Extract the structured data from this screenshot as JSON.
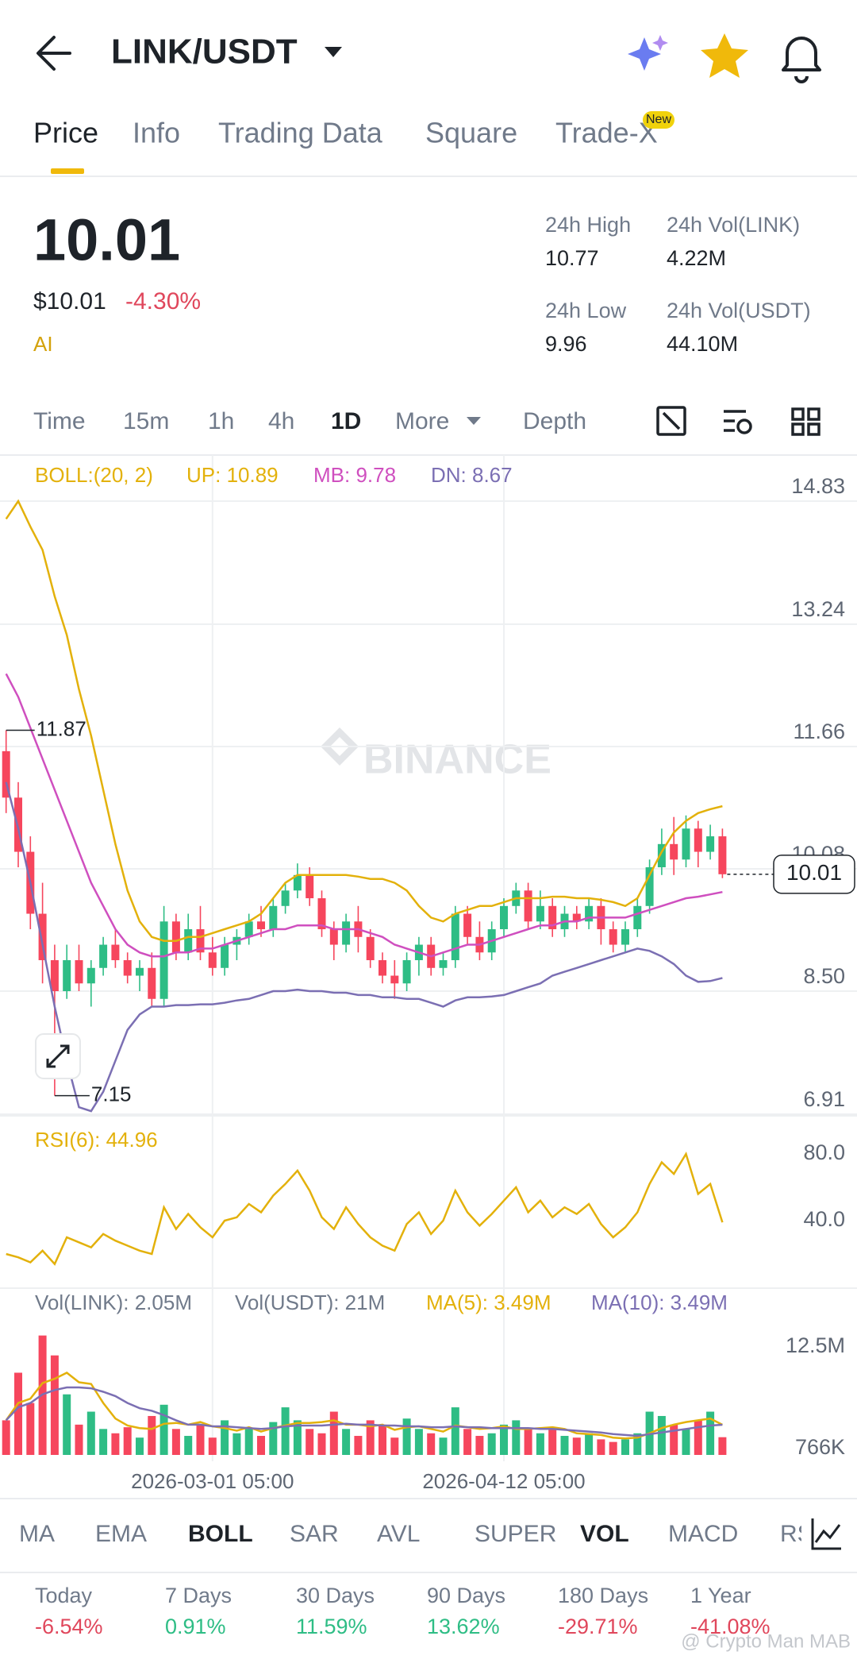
{
  "header": {
    "title": "LINK/USDT"
  },
  "tabs": {
    "items": [
      "Price",
      "Info",
      "Trading Data",
      "Square",
      "Trade-X"
    ],
    "badge": "New"
  },
  "ticker": {
    "price": "10.01",
    "usd_price": "$10.01",
    "change": "-4.30%",
    "ai": "AI",
    "stats": [
      {
        "label": "24h High",
        "value": "10.77"
      },
      {
        "label": "24h Vol(LINK)",
        "value": "4.22M"
      },
      {
        "label": "24h Low",
        "value": "9.96"
      },
      {
        "label": "24h Vol(USDT)",
        "value": "44.10M"
      }
    ]
  },
  "intervals": [
    "Time",
    "15m",
    "1h",
    "4h",
    "1D",
    "More",
    "Depth"
  ],
  "watermark": "BINANCE",
  "chart_data": [
    {
      "type": "candlestick",
      "indicator": "BOLL:(20, 2)",
      "up_color": "#2ebd85",
      "down_color": "#f6465d",
      "open": [
        11.6,
        11.0,
        10.3,
        9.5,
        8.9,
        8.5,
        8.9,
        8.6,
        8.8,
        9.1,
        8.9,
        8.7,
        8.8,
        8.4,
        9.4,
        9.0,
        9.3,
        9.0,
        8.8,
        9.1,
        9.2,
        9.4,
        9.3,
        9.6,
        9.8,
        10.0,
        9.7,
        9.3,
        9.1,
        9.4,
        9.2,
        8.9,
        8.7,
        8.6,
        8.9,
        9.1,
        8.8,
        8.9,
        9.5,
        9.2,
        9.0,
        9.3,
        9.6,
        9.8,
        9.4,
        9.6,
        9.3,
        9.5,
        9.4,
        9.6,
        9.3,
        9.1,
        9.3,
        9.6,
        10.1,
        10.4,
        10.2,
        10.6,
        10.3,
        10.5
      ],
      "high": [
        11.87,
        11.2,
        10.5,
        9.9,
        9.1,
        9.1,
        9.1,
        8.9,
        9.2,
        9.3,
        9.0,
        8.9,
        9.0,
        9.6,
        9.5,
        9.5,
        9.6,
        9.2,
        9.2,
        9.3,
        9.5,
        9.6,
        9.7,
        9.9,
        10.15,
        10.1,
        9.8,
        9.4,
        9.5,
        9.6,
        9.3,
        9.0,
        8.9,
        9.0,
        9.2,
        9.2,
        9.0,
        9.6,
        9.6,
        9.4,
        9.4,
        9.7,
        9.9,
        9.9,
        9.8,
        9.7,
        9.6,
        9.6,
        9.7,
        9.7,
        9.4,
        9.4,
        9.7,
        10.2,
        10.6,
        10.75,
        10.77,
        10.7,
        10.65,
        10.6
      ],
      "low": [
        10.8,
        10.1,
        9.3,
        8.6,
        7.15,
        8.4,
        8.5,
        8.3,
        8.7,
        8.8,
        8.6,
        8.5,
        8.3,
        8.3,
        8.9,
        8.9,
        8.9,
        8.7,
        8.7,
        8.9,
        9.1,
        9.2,
        9.2,
        9.5,
        9.7,
        9.6,
        9.2,
        8.9,
        9.0,
        9.0,
        8.8,
        8.6,
        8.4,
        8.5,
        8.7,
        8.7,
        8.7,
        8.8,
        9.1,
        8.9,
        8.9,
        9.2,
        9.5,
        9.3,
        9.3,
        9.2,
        9.2,
        9.3,
        9.3,
        9.1,
        9.0,
        9.0,
        9.2,
        9.5,
        10.0,
        10.0,
        10.1,
        10.1,
        10.2,
        9.96
      ],
      "close": [
        11.0,
        10.3,
        9.5,
        8.9,
        8.5,
        8.9,
        8.6,
        8.8,
        9.1,
        8.9,
        8.7,
        8.8,
        8.4,
        9.4,
        9.0,
        9.3,
        9.0,
        8.8,
        9.1,
        9.2,
        9.4,
        9.3,
        9.6,
        9.8,
        10.0,
        9.7,
        9.3,
        9.1,
        9.4,
        9.2,
        8.9,
        8.7,
        8.6,
        8.9,
        9.1,
        8.8,
        8.9,
        9.5,
        9.2,
        9.0,
        9.3,
        9.6,
        9.8,
        9.4,
        9.6,
        9.3,
        9.5,
        9.4,
        9.6,
        9.3,
        9.1,
        9.3,
        9.6,
        10.1,
        10.4,
        10.2,
        10.6,
        10.3,
        10.5,
        10.01
      ],
      "series": [
        {
          "name": "UP: 10.89",
          "color": "#e3b10b",
          "values": [
            14.6,
            14.83,
            14.5,
            14.2,
            13.6,
            13.1,
            12.4,
            11.8,
            11.1,
            10.4,
            9.8,
            9.4,
            9.2,
            9.15,
            9.15,
            9.2,
            9.2,
            9.25,
            9.3,
            9.35,
            9.4,
            9.5,
            9.7,
            9.9,
            10.0,
            10.0,
            10.0,
            10.0,
            10.0,
            9.98,
            9.95,
            9.95,
            9.9,
            9.8,
            9.6,
            9.45,
            9.4,
            9.5,
            9.55,
            9.6,
            9.6,
            9.65,
            9.7,
            9.7,
            9.7,
            9.72,
            9.72,
            9.7,
            9.7,
            9.68,
            9.65,
            9.6,
            9.7,
            10.0,
            10.3,
            10.55,
            10.7,
            10.8,
            10.85,
            10.89
          ]
        },
        {
          "name": "MB: 9.78",
          "color": "#cf4fbf",
          "values": [
            12.6,
            12.3,
            11.9,
            11.5,
            11.1,
            10.7,
            10.3,
            9.9,
            9.6,
            9.3,
            9.1,
            9.0,
            8.95,
            8.95,
            9.0,
            9.0,
            9.05,
            9.05,
            9.1,
            9.15,
            9.2,
            9.25,
            9.3,
            9.3,
            9.35,
            9.35,
            9.35,
            9.3,
            9.3,
            9.3,
            9.25,
            9.2,
            9.1,
            9.05,
            9.0,
            8.95,
            9.0,
            9.05,
            9.1,
            9.1,
            9.15,
            9.2,
            9.25,
            9.3,
            9.35,
            9.35,
            9.4,
            9.4,
            9.45,
            9.45,
            9.45,
            9.45,
            9.5,
            9.55,
            9.6,
            9.65,
            9.7,
            9.72,
            9.75,
            9.78
          ]
        },
        {
          "name": "DN: 8.67",
          "color": "#7b6fb3",
          "values": [
            11.2,
            10.6,
            9.9,
            9.1,
            8.3,
            7.6,
            7.0,
            6.95,
            7.2,
            7.6,
            8.0,
            8.2,
            8.3,
            8.3,
            8.32,
            8.32,
            8.33,
            8.33,
            8.35,
            8.38,
            8.4,
            8.45,
            8.5,
            8.5,
            8.52,
            8.5,
            8.5,
            8.48,
            8.48,
            8.45,
            8.45,
            8.42,
            8.42,
            8.4,
            8.4,
            8.35,
            8.3,
            8.38,
            8.42,
            8.42,
            8.43,
            8.45,
            8.5,
            8.55,
            8.6,
            8.7,
            8.75,
            8.8,
            8.85,
            8.9,
            8.95,
            9.0,
            9.05,
            9.02,
            8.95,
            8.85,
            8.7,
            8.62,
            8.63,
            8.67
          ]
        }
      ],
      "ylim": [
        6.91,
        14.83
      ],
      "yticks": [
        14.83,
        13.24,
        11.66,
        10.08,
        {
          "value": 8.5,
          "label": "8.50"
        },
        6.91
      ],
      "grid": true
    },
    {
      "type": "line",
      "series": [
        {
          "name": "RSI(6): 44.96",
          "color": "#e3b10b",
          "values": [
            20,
            18,
            15,
            22,
            14,
            30,
            27,
            24,
            32,
            28,
            25,
            22,
            20,
            48,
            35,
            44,
            36,
            30,
            40,
            42,
            50,
            45,
            55,
            62,
            70,
            58,
            42,
            35,
            48,
            38,
            30,
            25,
            22,
            38,
            45,
            32,
            40,
            58,
            45,
            37,
            44,
            52,
            60,
            45,
            52,
            42,
            48,
            44,
            50,
            38,
            30,
            36,
            45,
            62,
            75,
            68,
            80,
            56,
            62,
            39
          ]
        }
      ],
      "ylim": [
        0,
        100
      ],
      "yticks": [
        {
          "value": 80,
          "label": "80.0"
        },
        {
          "value": 40,
          "label": "40.0"
        }
      ],
      "grid": false
    },
    {
      "type": "bar",
      "legend": [
        "Vol(LINK): 2.05M",
        "Vol(USDT): 21M"
      ],
      "categories": [
        null,
        null,
        null,
        null,
        null,
        null,
        null,
        null,
        null,
        null,
        null,
        null,
        null,
        null,
        null,
        null,
        null,
        "2026-03-01 05:00",
        null,
        null,
        null,
        null,
        null,
        null,
        null,
        null,
        null,
        null,
        null,
        null,
        null,
        null,
        null,
        null,
        null,
        null,
        null,
        null,
        null,
        null,
        null,
        "2026-04-12 05:00",
        null,
        null,
        null,
        null,
        null,
        null,
        null,
        null,
        null,
        null,
        null,
        null,
        null,
        null,
        null,
        null,
        null,
        null
      ],
      "values": [
        4.0,
        9.5,
        6.0,
        13.8,
        11.5,
        7.0,
        3.5,
        5.0,
        3.0,
        2.5,
        3.2,
        2.0,
        4.5,
        5.8,
        3.0,
        2.2,
        3.5,
        2.0,
        4.0,
        2.5,
        3.0,
        2.2,
        3.8,
        5.5,
        4.0,
        3.0,
        2.5,
        5.0,
        3.0,
        2.2,
        4.0,
        3.5,
        2.0,
        4.2,
        3.0,
        2.5,
        2.0,
        5.5,
        3.0,
        2.2,
        2.5,
        3.5,
        4.0,
        3.0,
        2.5,
        3.0,
        2.2,
        2.0,
        2.5,
        1.8,
        1.5,
        1.8,
        2.5,
        5.0,
        4.5,
        3.5,
        3.0,
        4.0,
        5.0,
        2.05
      ],
      "series": [
        {
          "name": "MA(5): 3.49M",
          "color": "#e3b10b",
          "values": [
            4.0,
            6.0,
            6.5,
            8.3,
            8.8,
            9.5,
            8.4,
            8.2,
            6.0,
            4.2,
            3.4,
            3.1,
            3.0,
            3.6,
            3.7,
            3.5,
            3.8,
            3.3,
            3.1,
            2.8,
            3.2,
            2.7,
            3.1,
            3.4,
            3.7,
            3.7,
            3.8,
            4.0,
            3.5,
            3.5,
            3.3,
            3.5,
            2.9,
            3.2,
            3.3,
            3.0,
            2.7,
            3.4,
            3.2,
            3.0,
            3.1,
            3.3,
            3.0,
            3.0,
            3.1,
            3.2,
            3.0,
            2.5,
            2.4,
            2.3,
            2.0,
            1.9,
            2.0,
            2.5,
            3.1,
            3.5,
            3.8,
            4.0,
            4.2,
            3.49
          ]
        },
        {
          "name": "MA(10): 3.49M",
          "color": "#7b6fb3",
          "values": [
            4.0,
            5.5,
            6.0,
            7.0,
            7.5,
            7.8,
            7.8,
            7.7,
            7.3,
            6.8,
            6.0,
            5.4,
            5.1,
            4.6,
            4.0,
            3.5,
            3.5,
            3.3,
            3.3,
            3.2,
            3.1,
            3.0,
            3.1,
            3.3,
            3.4,
            3.4,
            3.4,
            3.5,
            3.6,
            3.5,
            3.5,
            3.4,
            3.4,
            3.3,
            3.3,
            3.2,
            3.2,
            3.3,
            3.2,
            3.2,
            3.1,
            3.1,
            3.1,
            3.1,
            3.0,
            3.0,
            2.9,
            2.8,
            2.7,
            2.6,
            2.4,
            2.3,
            2.2,
            2.4,
            2.6,
            2.8,
            3.0,
            3.2,
            3.4,
            3.49
          ]
        }
      ],
      "ylim": [
        0,
        14.5
      ],
      "yticks": [
        {
          "value": 12.5,
          "label": "12.5M"
        },
        {
          "value": 0.766,
          "label": "766K"
        }
      ],
      "grid": false
    }
  ],
  "indicators": [
    "MA",
    "EMA",
    "BOLL",
    "SAR",
    "AVL",
    "SUPER",
    "VOL",
    "MACD",
    "RSI"
  ],
  "performance": [
    {
      "label": "Today",
      "value": "-6.54%"
    },
    {
      "label": "7 Days",
      "value": "0.91%"
    },
    {
      "label": "30 Days",
      "value": "11.59%"
    },
    {
      "label": "90 Days",
      "value": "13.62%"
    },
    {
      "label": "180 Days",
      "value": "-29.71%"
    },
    {
      "label": "1 Year",
      "value": "-41.08%"
    }
  ],
  "credit": "@ Crypto Man MAB"
}
